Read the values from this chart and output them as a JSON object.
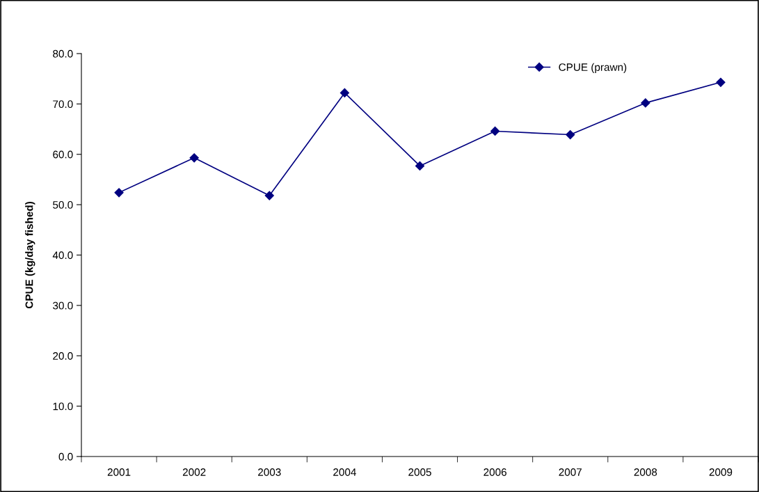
{
  "chart_data": {
    "type": "line",
    "ylabel": "CPUE (kg/day fished)",
    "categories": [
      "2001",
      "2002",
      "2003",
      "2004",
      "2005",
      "2006",
      "2007",
      "2008",
      "2009"
    ],
    "series": [
      {
        "name": "CPUE (prawn)",
        "color": "#000080",
        "values": [
          52.4,
          59.3,
          51.8,
          72.2,
          57.7,
          64.6,
          63.9,
          70.2,
          74.3
        ]
      }
    ],
    "ylim": [
      0,
      80
    ],
    "yticks": [
      {
        "value": 0,
        "label": "0.0"
      },
      {
        "value": 10,
        "label": "10.0"
      },
      {
        "value": 20,
        "label": "20.0"
      },
      {
        "value": 30,
        "label": "30.0"
      },
      {
        "value": 40,
        "label": "40.0"
      },
      {
        "value": 50,
        "label": "50.0"
      },
      {
        "value": 60,
        "label": "60.0"
      },
      {
        "value": 70,
        "label": "70.0"
      },
      {
        "value": 80,
        "label": "80.0"
      }
    ],
    "marker": "diamond",
    "line_style": "solid",
    "grid": false,
    "legend": "top right"
  }
}
